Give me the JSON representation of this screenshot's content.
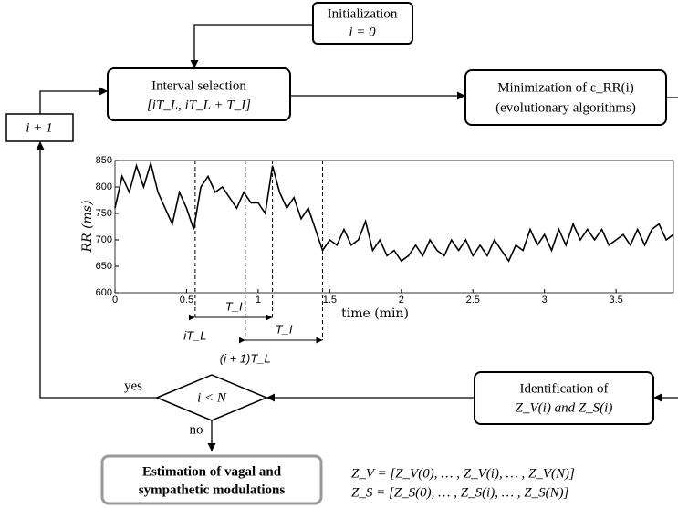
{
  "nodes": {
    "init": {
      "line1": "Initialization",
      "line2": "i = 0"
    },
    "interval": {
      "line1": "Interval selection",
      "line2": "[iT_L, iT_L + T_I]"
    },
    "minimization": {
      "line1": "Minimization of ε_RR(i)",
      "line2": "(evolutionary algorithms)"
    },
    "increment": {
      "label": "i + 1"
    },
    "decision": {
      "label": "i < N",
      "yes": "yes",
      "no": "no"
    },
    "identification": {
      "line1": "Identification of",
      "line2": "Z_V(i) and Z_S(i)"
    },
    "estimation": {
      "line1": "Estimation of vagal and",
      "line2": "sympathetic modulations"
    },
    "formulas": [
      "Z_V = [Z_V(0), … , Z_V(i), … , Z_V(N)]",
      "Z_S = [Z_S(0), … , Z_S(i), … , Z_S(N)]"
    ]
  },
  "chart_data": {
    "type": "line",
    "x_label": "time (min)",
    "y_label": "RR (ms)",
    "color": "#000000",
    "xlim": [
      0,
      3.9
    ],
    "ylim": [
      600,
      850
    ],
    "xticks": [
      0,
      0.5,
      1,
      1.5,
      2,
      2.5,
      3,
      3.5
    ],
    "yticks": [
      600,
      650,
      700,
      750,
      800,
      850
    ],
    "x": [
      0,
      0.05,
      0.1,
      0.15,
      0.2,
      0.25,
      0.3,
      0.35,
      0.4,
      0.45,
      0.5,
      0.55,
      0.6,
      0.65,
      0.7,
      0.75,
      0.8,
      0.85,
      0.9,
      0.95,
      1,
      1.05,
      1.1,
      1.15,
      1.2,
      1.25,
      1.3,
      1.35,
      1.4,
      1.45,
      1.5,
      1.55,
      1.6,
      1.65,
      1.7,
      1.75,
      1.8,
      1.85,
      1.9,
      1.95,
      2,
      2.05,
      2.1,
      2.15,
      2.2,
      2.25,
      2.3,
      2.35,
      2.4,
      2.45,
      2.5,
      2.55,
      2.6,
      2.65,
      2.7,
      2.75,
      2.8,
      2.85,
      2.9,
      2.95,
      3,
      3.05,
      3.1,
      3.15,
      3.2,
      3.25,
      3.3,
      3.35,
      3.4,
      3.45,
      3.5,
      3.55,
      3.6,
      3.65,
      3.7,
      3.75,
      3.8,
      3.85,
      3.9
    ],
    "values": [
      760,
      820,
      790,
      840,
      800,
      845,
      790,
      760,
      730,
      790,
      760,
      720,
      800,
      820,
      790,
      800,
      780,
      760,
      790,
      770,
      770,
      750,
      840,
      790,
      760,
      780,
      740,
      760,
      720,
      680,
      700,
      690,
      720,
      690,
      700,
      735,
      680,
      700,
      670,
      680,
      660,
      670,
      690,
      670,
      700,
      680,
      670,
      700,
      680,
      700,
      670,
      690,
      670,
      700,
      680,
      660,
      690,
      680,
      720,
      690,
      710,
      680,
      720,
      690,
      730,
      700,
      720,
      700,
      720,
      690,
      700,
      710,
      690,
      720,
      690,
      720,
      730,
      700,
      710
    ],
    "markers": [
      0.56,
      0.91,
      1.1,
      1.45
    ],
    "annotations": {
      "ti1": "T_I",
      "ti2": "T_I",
      "itl": "iT_L",
      "i1tl": "(i + 1)T_L"
    }
  }
}
